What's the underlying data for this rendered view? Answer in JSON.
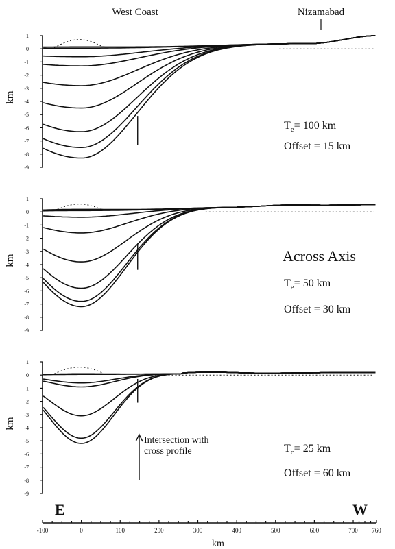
{
  "labels": {
    "west_coast": "West Coast",
    "nizamabad": "Nizamabad",
    "across_axis": "Across Axis",
    "left_end": "E",
    "right_end": "W",
    "intersection_line1": "Intersection with",
    "intersection_line2": "cross profile",
    "x_axis_label": "km"
  },
  "chart_data": [
    {
      "type": "line",
      "ylabel": "km",
      "xlim": [
        -100,
        760
      ],
      "ylim": [
        -9,
        1
      ],
      "y_ticks": [
        1,
        0,
        -1,
        -2,
        -3,
        -4,
        -5,
        -6,
        -7,
        -8,
        -9
      ],
      "y_tick_labels": [
        "1",
        "0",
        "-1",
        "-2",
        "-3",
        "-4",
        "-5",
        "-6",
        "-7",
        "-8",
        "-9"
      ],
      "annotation": {
        "te_label": "T",
        "te_sub": "e",
        "te_value": "= 100 km",
        "offset": "Offset = 15 km"
      },
      "intersection_x": 145,
      "intersection_y_range": [
        -7.3,
        -5.1
      ],
      "curve_params": {
        "width": 170,
        "tail": 160,
        "hinge_x": 590,
        "hinge_y": 0.4,
        "right_x": 760,
        "right_y": 1.0
      },
      "series": [
        {
          "depth": 0.05
        },
        {
          "depth": 0.15
        },
        {
          "depth": -0.6
        },
        {
          "depth": -1.3
        },
        {
          "depth": -2.8
        },
        {
          "depth": -4.5
        },
        {
          "depth": -6.3
        },
        {
          "depth": -7.5
        },
        {
          "depth": -8.3
        }
      ],
      "dotted_hump": {
        "x_from": -70,
        "x_to": 60,
        "height": 0.6
      }
    },
    {
      "type": "line",
      "ylabel": "km",
      "xlim": [
        -100,
        760
      ],
      "ylim": [
        -9,
        1
      ],
      "y_ticks": [
        1,
        0,
        -1,
        -2,
        -3,
        -4,
        -5,
        -6,
        -7,
        -8,
        -9
      ],
      "y_tick_labels": [
        "1",
        "0",
        "-1",
        "-2",
        "-3",
        "-4",
        "-5",
        "-6",
        "-7",
        "-8",
        "-9"
      ],
      "annotation": {
        "te_label": "T",
        "te_sub": "e",
        "te_value": "= 50 km",
        "offset": "Offset = 30 km"
      },
      "intersection_x": 145,
      "intersection_y_range": [
        -4.4,
        -2.4
      ],
      "curve_params": {
        "width": 150,
        "tail": 90,
        "hinge_x": 400,
        "hinge_y": 0.35,
        "right_x": 760,
        "right_y": 0.55,
        "bump_x": 520,
        "bump_y": 0.7
      },
      "series": [
        {
          "depth": 0.2
        },
        {
          "depth": 0.1
        },
        {
          "depth": -0.4
        },
        {
          "depth": -1.6
        },
        {
          "depth": -3.8
        },
        {
          "depth": -5.8
        },
        {
          "depth": -6.8
        },
        {
          "depth": -7.2
        }
      ],
      "dotted_hump": {
        "x_from": -70,
        "x_to": 60,
        "height": 0.5
      }
    },
    {
      "type": "line",
      "ylabel": "km",
      "xlim": [
        -100,
        760
      ],
      "ylim": [
        -9,
        1
      ],
      "y_ticks": [
        1,
        0,
        -1,
        -2,
        -3,
        -4,
        -5,
        -6,
        -7,
        -8,
        -9
      ],
      "y_tick_labels": [
        "1",
        "0",
        "-1",
        "-2",
        "-3",
        "-4",
        "-5",
        "-6",
        "-7",
        "-8",
        "-9"
      ],
      "annotation": {
        "te_label": "T",
        "te_sub": "c",
        "te_value": "= 25 km",
        "offset": "Offset = 60 km"
      },
      "intersection_x": 145,
      "intersection_y_range": [
        -2.1,
        -0.3
      ],
      "curve_params": {
        "width": 120,
        "tail": 60,
        "hinge_x": 260,
        "hinge_y": 0.1,
        "right_x": 760,
        "right_y": 0.2,
        "bump_x": 330,
        "bump_y": 0.35
      },
      "series": [
        {
          "depth": 0.1
        },
        {
          "depth": 0.05
        },
        {
          "depth": -0.6
        },
        {
          "depth": -0.9
        },
        {
          "depth": -3.1
        },
        {
          "depth": -4.8
        },
        {
          "depth": -5.2
        }
      ],
      "dotted_hump": {
        "x_from": -70,
        "x_to": 60,
        "height": 0.5
      }
    }
  ],
  "x_axis": {
    "ticks": [
      -100,
      0,
      100,
      200,
      300,
      400,
      500,
      600,
      700,
      760
    ],
    "tick_labels": [
      "-100",
      "0",
      "100",
      "200",
      "300",
      "400",
      "500",
      "600",
      "700",
      "760"
    ]
  }
}
